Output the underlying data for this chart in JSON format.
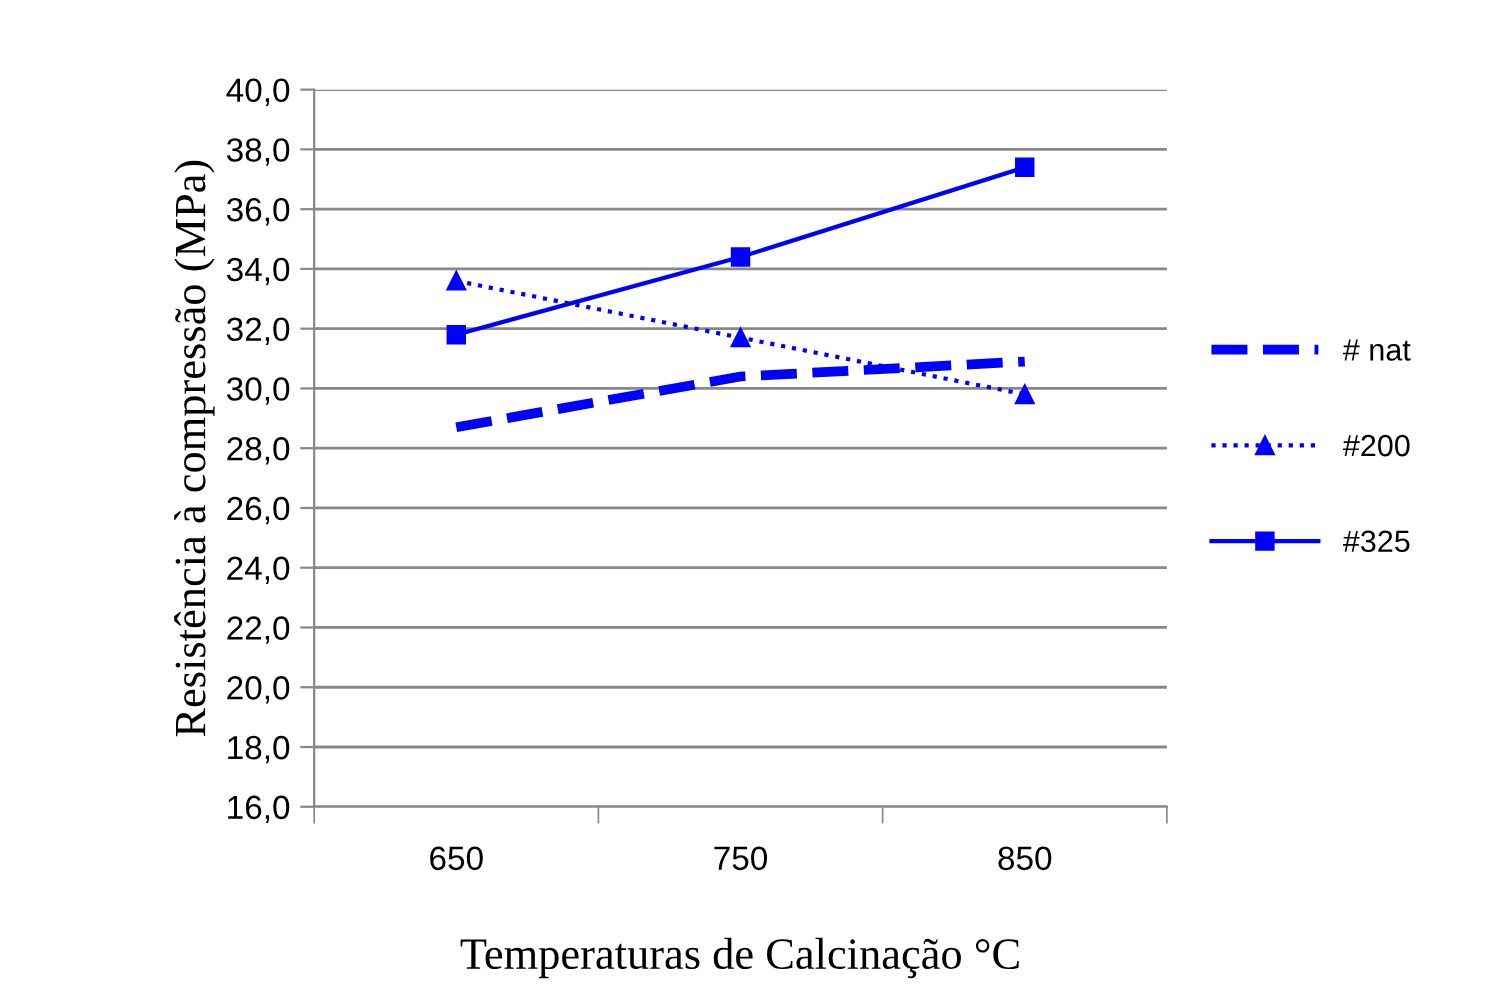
{
  "chart_data": {
    "type": "line",
    "xlabel": "Temperaturas de Calcinação °C",
    "ylabel": "Resistência à compressão (MPa)",
    "categories": [
      "650",
      "750",
      "850"
    ],
    "series": [
      {
        "name": "# nat",
        "color": "#0000ff",
        "values": [
          28.7,
          30.4,
          30.9
        ],
        "line_style": "dashed",
        "marker": "none"
      },
      {
        "name": "#200",
        "color": "#0000ff",
        "values": [
          33.6,
          31.7,
          29.8
        ],
        "line_style": "dotted",
        "marker": "triangle"
      },
      {
        "name": "#325",
        "color": "#0000ff",
        "values": [
          31.8,
          34.4,
          37.4
        ],
        "line_style": "solid",
        "marker": "square"
      }
    ],
    "ylim": [
      16,
      40
    ],
    "yticks": [
      {
        "value": 16,
        "label": "16,0"
      },
      {
        "value": 18,
        "label": "18,0"
      },
      {
        "value": 20,
        "label": "20,0"
      },
      {
        "value": 22,
        "label": "22,0"
      },
      {
        "value": 24,
        "label": "24,0"
      },
      {
        "value": 26,
        "label": "26,0"
      },
      {
        "value": 28,
        "label": "28,0"
      },
      {
        "value": 30,
        "label": "30,0"
      },
      {
        "value": 32,
        "label": "32,0"
      },
      {
        "value": 34,
        "label": "34,0"
      },
      {
        "value": 36,
        "label": "36,0"
      },
      {
        "value": 38,
        "label": "38,0"
      },
      {
        "value": 40,
        "label": "40,0"
      }
    ],
    "grid": "y",
    "legend": "right"
  }
}
